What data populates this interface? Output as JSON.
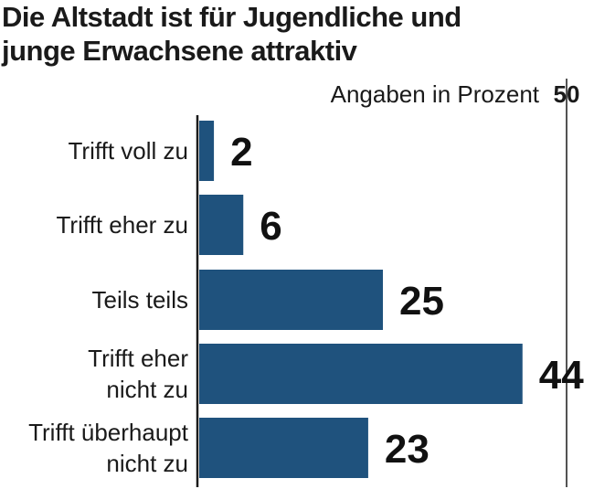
{
  "title_lines": [
    "Die Altstadt ist für Jugendliche und",
    "junge Erwachsene attraktiv"
  ],
  "chart_data": {
    "type": "bar",
    "orientation": "horizontal",
    "title": "Die Altstadt ist für Jugendliche und junge Erwachsene attraktiv",
    "unit_label": "Angaben in Prozent",
    "categories": [
      [
        "Trifft voll zu"
      ],
      [
        "Trifft eher zu"
      ],
      [
        "Teils teils"
      ],
      [
        "Trifft eher",
        "nicht zu"
      ],
      [
        "Trifft überhaupt",
        "nicht zu"
      ]
    ],
    "values": [
      2,
      6,
      25,
      44,
      23
    ],
    "xlim": [
      0,
      50
    ],
    "x_ticks": [
      50
    ],
    "grid": "single reference line at 50",
    "bar_color": "#1f527d",
    "legend": "none"
  }
}
